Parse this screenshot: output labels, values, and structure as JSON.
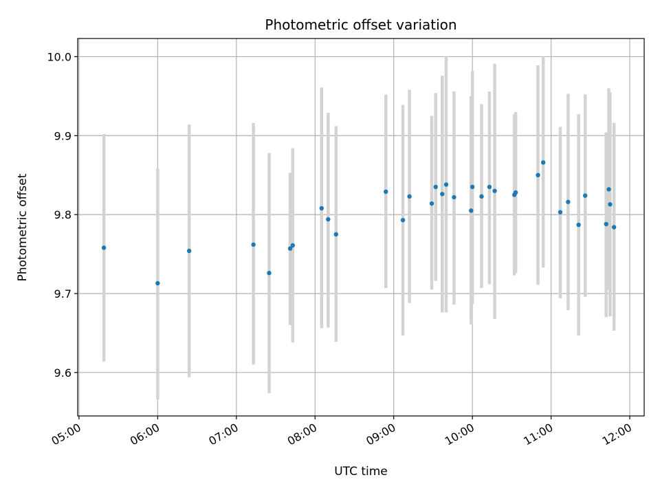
{
  "chart_data": {
    "type": "scatter",
    "title": "Photometric offset variation",
    "xlabel": "UTC time",
    "ylabel": "Photometric offset",
    "x_ticks": [
      "05:00",
      "06:00",
      "07:00",
      "08:00",
      "09:00",
      "10:00",
      "11:00",
      "12:00"
    ],
    "y_ticks": [
      "9.6",
      "9.7",
      "9.8",
      "9.9",
      "10.0"
    ],
    "xlim": [
      "04:59",
      "12:11"
    ],
    "ylim": [
      9.545,
      10.023
    ],
    "grid": true,
    "point_color": "#1f77b4",
    "errorbar_color": "#d3d3d3",
    "points": [
      {
        "x": "05:19",
        "y": 9.758,
        "ylo": 9.614,
        "yhi": 9.902
      },
      {
        "x": "06:00",
        "y": 9.713,
        "ylo": 9.566,
        "yhi": 9.858
      },
      {
        "x": "06:24",
        "y": 9.754,
        "ylo": 9.594,
        "yhi": 9.914
      },
      {
        "x": "07:13",
        "y": 9.762,
        "ylo": 9.61,
        "yhi": 9.916
      },
      {
        "x": "07:25",
        "y": 9.726,
        "ylo": 9.574,
        "yhi": 9.878
      },
      {
        "x": "07:41",
        "y": 9.757,
        "ylo": 9.66,
        "yhi": 9.853
      },
      {
        "x": "07:43",
        "y": 9.761,
        "ylo": 9.638,
        "yhi": 9.884
      },
      {
        "x": "08:05",
        "y": 9.808,
        "ylo": 9.656,
        "yhi": 9.961
      },
      {
        "x": "08:10",
        "y": 9.794,
        "ylo": 9.657,
        "yhi": 9.929
      },
      {
        "x": "08:16",
        "y": 9.775,
        "ylo": 9.639,
        "yhi": 9.912
      },
      {
        "x": "08:54",
        "y": 9.829,
        "ylo": 9.707,
        "yhi": 9.952
      },
      {
        "x": "09:07",
        "y": 9.793,
        "ylo": 9.647,
        "yhi": 9.939
      },
      {
        "x": "09:12",
        "y": 9.823,
        "ylo": 9.688,
        "yhi": 9.958
      },
      {
        "x": "09:29",
        "y": 9.814,
        "ylo": 9.705,
        "yhi": 9.925
      },
      {
        "x": "09:32",
        "y": 9.835,
        "ylo": 9.716,
        "yhi": 9.954
      },
      {
        "x": "09:37",
        "y": 9.826,
        "ylo": 9.676,
        "yhi": 9.976
      },
      {
        "x": "09:40",
        "y": 9.838,
        "ylo": 9.676,
        "yhi": 10.0
      },
      {
        "x": "09:46",
        "y": 9.822,
        "ylo": 9.686,
        "yhi": 9.956
      },
      {
        "x": "09:59",
        "y": 9.805,
        "ylo": 9.661,
        "yhi": 9.95
      },
      {
        "x": "10:00",
        "y": 9.835,
        "ylo": 9.687,
        "yhi": 9.982
      },
      {
        "x": "10:07",
        "y": 9.823,
        "ylo": 9.707,
        "yhi": 9.94
      },
      {
        "x": "10:13",
        "y": 9.835,
        "ylo": 9.712,
        "yhi": 9.956
      },
      {
        "x": "10:17",
        "y": 9.83,
        "ylo": 9.668,
        "yhi": 9.991
      },
      {
        "x": "10:32",
        "y": 9.825,
        "ylo": 9.723,
        "yhi": 9.927
      },
      {
        "x": "10:33",
        "y": 9.828,
        "ylo": 9.726,
        "yhi": 9.93
      },
      {
        "x": "10:50",
        "y": 9.85,
        "ylo": 9.711,
        "yhi": 9.989
      },
      {
        "x": "10:54",
        "y": 9.866,
        "ylo": 9.733,
        "yhi": 10.0
      },
      {
        "x": "11:07",
        "y": 9.803,
        "ylo": 9.694,
        "yhi": 9.911
      },
      {
        "x": "11:13",
        "y": 9.816,
        "ylo": 9.679,
        "yhi": 9.953
      },
      {
        "x": "11:21",
        "y": 9.787,
        "ylo": 9.647,
        "yhi": 9.927
      },
      {
        "x": "11:26",
        "y": 9.824,
        "ylo": 9.696,
        "yhi": 9.952
      },
      {
        "x": "11:42",
        "y": 9.788,
        "ylo": 9.67,
        "yhi": 9.904
      },
      {
        "x": "11:44",
        "y": 9.832,
        "ylo": 9.705,
        "yhi": 9.96
      },
      {
        "x": "11:45",
        "y": 9.813,
        "ylo": 9.671,
        "yhi": 9.955
      },
      {
        "x": "11:48",
        "y": 9.784,
        "ylo": 9.653,
        "yhi": 9.916
      }
    ]
  }
}
